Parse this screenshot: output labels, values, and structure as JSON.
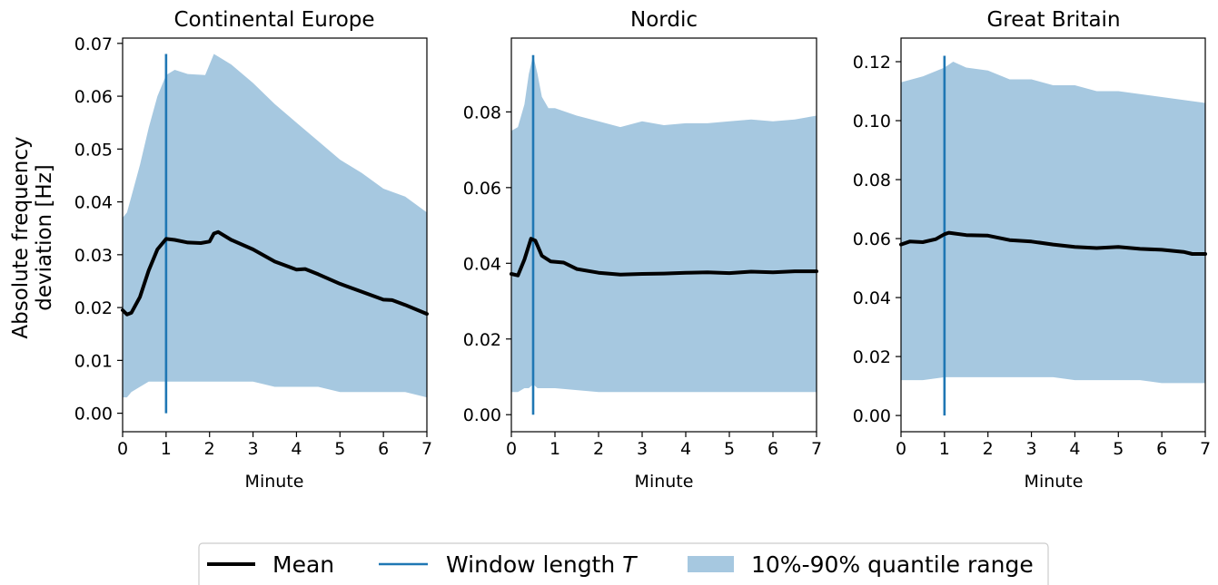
{
  "figure": {
    "ylabel_line1": "Absolute frequency",
    "ylabel_line2": "deviation [Hz]",
    "colors": {
      "band": "#a6c8e0",
      "mean": "#000000",
      "window": "#1f77b4"
    }
  },
  "legend": {
    "items": [
      {
        "label": "Mean",
        "kind": "line",
        "color": "#000000"
      },
      {
        "label": "Window length T",
        "kind": "line",
        "color": "#1f77b4"
      },
      {
        "label": "10%-90% quantile range",
        "kind": "patch",
        "color": "#a6c8e0"
      }
    ]
  },
  "chart_data": [
    {
      "type": "area",
      "title": "Continental Europe",
      "xlabel": "Minute",
      "ylabel": "Absolute frequency deviation [Hz]",
      "xlim": [
        0,
        7
      ],
      "ylim": [
        -0.0035,
        0.071
      ],
      "xticks": [
        0,
        1,
        2,
        3,
        4,
        5,
        6,
        7
      ],
      "yticks": [
        "0.00",
        "0.01",
        "0.02",
        "0.03",
        "0.04",
        "0.05",
        "0.06",
        "0.07"
      ],
      "window_length_T": 1.0,
      "window_line_ymax": 0.068,
      "series": [
        {
          "name": "Mean",
          "x": [
            0,
            0.1,
            0.2,
            0.4,
            0.6,
            0.8,
            1.0,
            1.2,
            1.5,
            1.8,
            2.0,
            2.1,
            2.2,
            2.5,
            3.0,
            3.5,
            4.0,
            4.2,
            4.5,
            5.0,
            5.5,
            6.0,
            6.2,
            6.5,
            7.0
          ],
          "y": [
            0.0195,
            0.0187,
            0.019,
            0.022,
            0.027,
            0.031,
            0.033,
            0.0328,
            0.0323,
            0.0322,
            0.0325,
            0.034,
            0.0343,
            0.0328,
            0.031,
            0.0287,
            0.0272,
            0.0273,
            0.0263,
            0.0245,
            0.023,
            0.0215,
            0.0214,
            0.0205,
            0.0188
          ]
        },
        {
          "name": "10%-90% quantile range",
          "x": [
            0,
            0.1,
            0.2,
            0.4,
            0.6,
            0.8,
            1.0,
            1.2,
            1.5,
            1.9,
            2.0,
            2.1,
            2.2,
            2.5,
            3.0,
            3.5,
            4.0,
            4.5,
            5.0,
            5.5,
            6.0,
            6.5,
            7.0
          ],
          "upper": [
            0.037,
            0.038,
            0.041,
            0.047,
            0.054,
            0.06,
            0.064,
            0.065,
            0.0642,
            0.064,
            0.066,
            0.068,
            0.0675,
            0.066,
            0.0625,
            0.0585,
            0.055,
            0.0515,
            0.048,
            0.0455,
            0.0425,
            0.041,
            0.038
          ],
          "lower": [
            0.003,
            0.003,
            0.004,
            0.005,
            0.006,
            0.006,
            0.006,
            0.006,
            0.006,
            0.006,
            0.006,
            0.006,
            0.006,
            0.006,
            0.006,
            0.005,
            0.005,
            0.005,
            0.004,
            0.004,
            0.004,
            0.004,
            0.003
          ]
        }
      ]
    },
    {
      "type": "area",
      "title": "Nordic",
      "xlabel": "Minute",
      "ylabel": "",
      "xlim": [
        0,
        7
      ],
      "ylim": [
        -0.0045,
        0.0995
      ],
      "xticks": [
        0,
        1,
        2,
        3,
        4,
        5,
        6,
        7
      ],
      "yticks": [
        "0.00",
        "0.02",
        "0.04",
        "0.06",
        "0.08"
      ],
      "window_length_T": 0.5,
      "window_line_ymax": 0.095,
      "series": [
        {
          "name": "Mean",
          "x": [
            0,
            0.15,
            0.3,
            0.45,
            0.55,
            0.7,
            0.9,
            1.2,
            1.5,
            2.0,
            2.5,
            3.0,
            3.5,
            4.0,
            4.5,
            5.0,
            5.5,
            6.0,
            6.5,
            7.0
          ],
          "y": [
            0.0372,
            0.0368,
            0.041,
            0.0465,
            0.046,
            0.042,
            0.0405,
            0.0402,
            0.0385,
            0.0375,
            0.037,
            0.0372,
            0.0373,
            0.0375,
            0.0376,
            0.0374,
            0.0378,
            0.0376,
            0.0379,
            0.0379
          ]
        },
        {
          "name": "10%-90% quantile range",
          "x": [
            0,
            0.15,
            0.3,
            0.4,
            0.5,
            0.6,
            0.7,
            0.85,
            1.0,
            1.5,
            2.0,
            2.5,
            3.0,
            3.5,
            4.0,
            4.5,
            5.0,
            5.5,
            6.0,
            6.5,
            7.0
          ],
          "upper": [
            0.075,
            0.076,
            0.082,
            0.09,
            0.095,
            0.09,
            0.084,
            0.081,
            0.081,
            0.079,
            0.0775,
            0.076,
            0.0775,
            0.0765,
            0.077,
            0.077,
            0.0775,
            0.078,
            0.0775,
            0.078,
            0.079
          ],
          "lower": [
            0.006,
            0.006,
            0.007,
            0.007,
            0.008,
            0.007,
            0.007,
            0.007,
            0.007,
            0.0065,
            0.006,
            0.006,
            0.006,
            0.006,
            0.006,
            0.006,
            0.006,
            0.006,
            0.006,
            0.006,
            0.006
          ]
        }
      ]
    },
    {
      "type": "area",
      "title": "Great Britain",
      "xlabel": "Minute",
      "ylabel": "",
      "xlim": [
        0,
        7
      ],
      "ylim": [
        -0.0055,
        0.128
      ],
      "xticks": [
        0,
        1,
        2,
        3,
        4,
        5,
        6,
        7
      ],
      "yticks": [
        "0.00",
        "0.02",
        "0.04",
        "0.06",
        "0.08",
        "0.10",
        "0.12"
      ],
      "window_length_T": 1.0,
      "window_line_ymax": 0.122,
      "series": [
        {
          "name": "Mean",
          "x": [
            0,
            0.2,
            0.5,
            0.8,
            1.0,
            1.1,
            1.5,
            2.0,
            2.5,
            3.0,
            3.5,
            4.0,
            4.5,
            5.0,
            5.5,
            6.0,
            6.5,
            6.7,
            7.0
          ],
          "y": [
            0.058,
            0.059,
            0.0588,
            0.0598,
            0.0615,
            0.062,
            0.0612,
            0.061,
            0.0595,
            0.059,
            0.058,
            0.0572,
            0.0568,
            0.0572,
            0.0565,
            0.0562,
            0.0555,
            0.0548,
            0.0548
          ]
        },
        {
          "name": "10%-90% quantile range",
          "x": [
            0,
            0.5,
            1.0,
            1.2,
            1.5,
            2.0,
            2.5,
            3.0,
            3.5,
            4.0,
            4.5,
            5.0,
            5.5,
            6.0,
            6.5,
            7.0
          ],
          "upper": [
            0.113,
            0.115,
            0.118,
            0.12,
            0.118,
            0.117,
            0.114,
            0.114,
            0.112,
            0.112,
            0.11,
            0.11,
            0.109,
            0.108,
            0.107,
            0.106
          ],
          "lower": [
            0.012,
            0.012,
            0.013,
            0.013,
            0.013,
            0.013,
            0.013,
            0.013,
            0.013,
            0.012,
            0.012,
            0.012,
            0.012,
            0.011,
            0.011,
            0.011
          ]
        }
      ]
    }
  ]
}
